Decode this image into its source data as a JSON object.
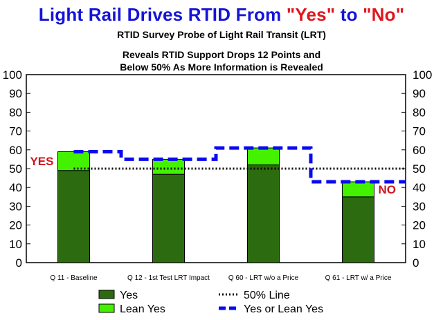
{
  "header": {
    "title_prefix": "Light Rail Drives RTID From ",
    "title_yes": "\"Yes\"",
    "title_mid": " to ",
    "title_no": "\"No\"",
    "subtitle": "RTID Survey Probe of Light Rail Transit (LRT)",
    "caption_line1": "Reveals RTID Support Drops 12 Points and",
    "caption_line2": "Below 50% As More Information is Revealed"
  },
  "colors": {
    "yes": "#2c6b0f",
    "lean_yes": "#44f200",
    "combined_line": "#0a0af0",
    "fifty_line": "#000000",
    "title_blue": "#1414d8",
    "title_red": "#e0161c",
    "annotation_red": "#d0141c"
  },
  "chart_data": {
    "type": "bar",
    "stacked": true,
    "categories": [
      "Q 11 - Baseline",
      "Q 12 - 1st Test LRT Impact",
      "Q 60 - LRT w/o a Price",
      "Q 61 - LRT w/ a Price"
    ],
    "series": [
      {
        "name": "Yes",
        "values": [
          49,
          47,
          52,
          35
        ]
      },
      {
        "name": "Lean Yes",
        "values": [
          10,
          8,
          9,
          8
        ]
      }
    ],
    "lines": [
      {
        "name": "50% Line",
        "values": [
          50,
          50,
          50,
          50
        ],
        "style": "dotted"
      },
      {
        "name": "Yes or Lean Yes",
        "values": [
          59,
          55,
          61,
          43
        ],
        "style": "dashed-step"
      }
    ],
    "ylim": [
      0,
      100
    ],
    "yticks": [
      0,
      10,
      20,
      30,
      40,
      50,
      60,
      70,
      80,
      90,
      100
    ],
    "ytick_labels": [
      "0",
      "10",
      "20",
      "30",
      "40",
      "50",
      "60",
      "70",
      "80",
      "90",
      "100"
    ],
    "right_axis": true,
    "grid": false,
    "legend_position": "bottom",
    "annotations": [
      {
        "text": "YES",
        "at_category": 0,
        "side": "left",
        "y": 54
      },
      {
        "text": "NO",
        "at_category": 3,
        "side": "right",
        "y": 39
      }
    ]
  }
}
